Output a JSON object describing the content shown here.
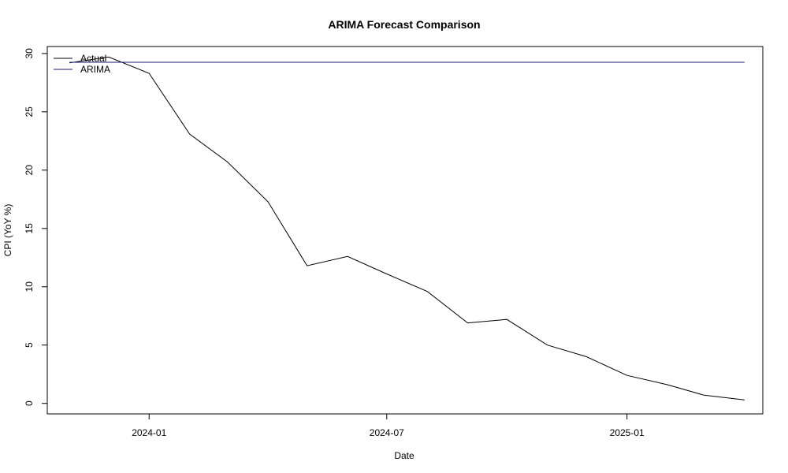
{
  "chart_data": {
    "type": "line",
    "title": "ARIMA Forecast Comparison",
    "xlabel": "Date",
    "ylabel": "CPI (YoY %)",
    "x_range": [
      "2023-10-15",
      "2025-04-15"
    ],
    "ylim": [
      -0.9,
      30.6
    ],
    "x_ticks": [
      {
        "date": "2024-01-01",
        "label": "2024-01"
      },
      {
        "date": "2024-07-01",
        "label": "2024-07"
      },
      {
        "date": "2025-01-01",
        "label": "2025-01"
      }
    ],
    "y_ticks": [
      0,
      5,
      10,
      15,
      20,
      25,
      30
    ],
    "grid": false,
    "legend_position": "top-left",
    "series": [
      {
        "name": "Actual",
        "color": "#000000",
        "points": [
          {
            "x": "2023-11-01",
            "y": 29.2
          },
          {
            "x": "2023-12-01",
            "y": 29.7
          },
          {
            "x": "2024-01-01",
            "y": 28.3
          },
          {
            "x": "2024-02-01",
            "y": 23.1
          },
          {
            "x": "2024-03-01",
            "y": 20.7
          },
          {
            "x": "2024-04-01",
            "y": 17.3
          },
          {
            "x": "2024-05-01",
            "y": 11.8
          },
          {
            "x": "2024-06-01",
            "y": 12.6
          },
          {
            "x": "2024-07-01",
            "y": 11.1
          },
          {
            "x": "2024-08-01",
            "y": 9.6
          },
          {
            "x": "2024-09-01",
            "y": 6.9
          },
          {
            "x": "2024-10-01",
            "y": 7.2
          },
          {
            "x": "2024-11-01",
            "y": 5.0
          },
          {
            "x": "2024-12-01",
            "y": 4.0
          },
          {
            "x": "2025-01-01",
            "y": 2.4
          },
          {
            "x": "2025-02-01",
            "y": 1.6
          },
          {
            "x": "2025-03-01",
            "y": 0.7
          },
          {
            "x": "2025-04-01",
            "y": 0.3
          }
        ]
      },
      {
        "name": "ARIMA",
        "color": "#191970",
        "points": [
          {
            "x": "2023-11-01",
            "y": 29.25
          },
          {
            "x": "2025-04-01",
            "y": 29.25
          }
        ]
      }
    ]
  }
}
